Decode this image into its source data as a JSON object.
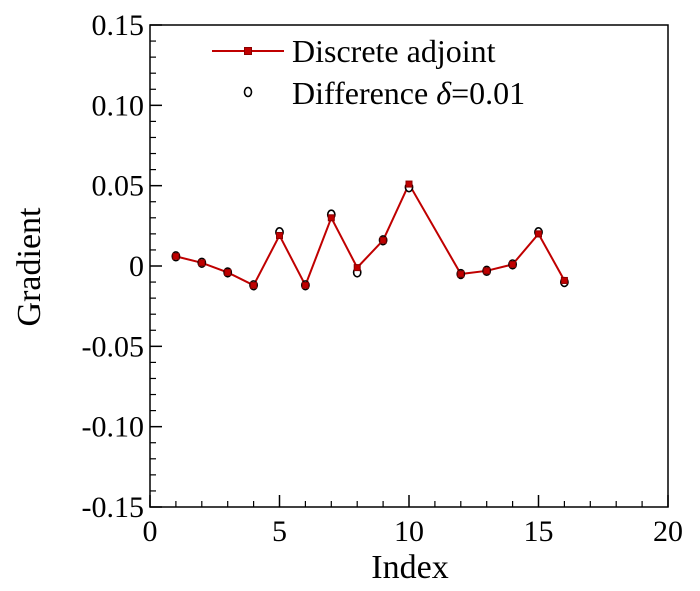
{
  "chart_data": {
    "type": "line",
    "xlabel": "Index",
    "ylabel": "Gradient",
    "xlim": [
      0,
      20
    ],
    "ylim": [
      -0.15,
      0.15
    ],
    "x_ticks": [
      0,
      5,
      10,
      15,
      20
    ],
    "x_tick_labels": [
      "0",
      "5",
      "10",
      "15",
      "20"
    ],
    "y_ticks": [
      -0.15,
      -0.1,
      -0.05,
      0,
      0.05,
      0.1,
      0.15
    ],
    "y_tick_labels": [
      "-0.15",
      "-0.10",
      "-0.05",
      "0",
      "0.05",
      "0.10",
      "0.15"
    ],
    "grid": false,
    "legend_position": "top-left",
    "series": [
      {
        "name": "Discrete adjoint",
        "legend_main": "Discrete adjoint",
        "style": "line-square",
        "color": "#c00000",
        "x": [
          1,
          2,
          3,
          4,
          5,
          6,
          7,
          8,
          9,
          10,
          12,
          13,
          14,
          15,
          16
        ],
        "values": [
          0.006,
          0.002,
          -0.004,
          -0.012,
          0.019,
          -0.012,
          0.03,
          -0.001,
          0.016,
          0.051,
          -0.005,
          -0.003,
          0.001,
          0.02,
          -0.009
        ]
      },
      {
        "name": "Difference δ=0.01",
        "legend_main": "Difference ",
        "legend_symbol": "δ",
        "legend_tail": "=0.01",
        "style": "circle-open",
        "color": "#000000",
        "x": [
          1,
          2,
          3,
          4,
          5,
          6,
          7,
          8,
          9,
          10,
          12,
          13,
          14,
          15,
          16
        ],
        "values": [
          0.006,
          0.002,
          -0.004,
          -0.012,
          0.021,
          -0.012,
          0.032,
          -0.004,
          0.016,
          0.049,
          -0.005,
          -0.003,
          0.001,
          0.021,
          -0.01
        ]
      }
    ]
  }
}
